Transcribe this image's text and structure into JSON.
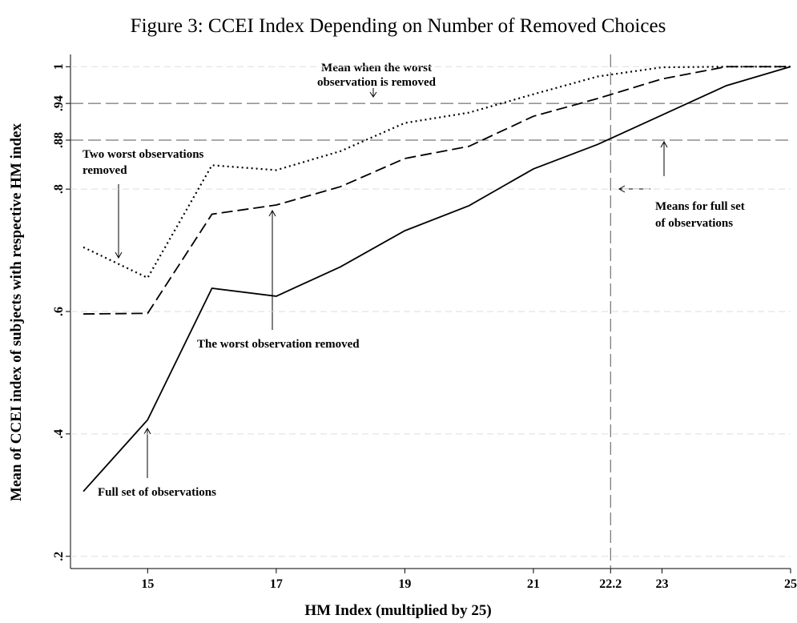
{
  "chart_data": {
    "type": "line",
    "title": "Figure 3: CCEI Index Depending on Number of Removed Choices",
    "x_label": "HM Index (multiplied by 25)",
    "y_label": "Mean of CCEI index of subjects with respective HM index",
    "x": [
      14,
      15,
      16,
      17,
      18,
      19,
      20,
      21,
      22,
      23,
      24,
      25
    ],
    "series": [
      {
        "style": "solid",
        "color": "#000000",
        "values": [
          0.306,
          0.423,
          0.638,
          0.625,
          0.673,
          0.732,
          0.773,
          0.833,
          0.873,
          0.921,
          0.969,
          1.0
        ]
      },
      {
        "style": "dashed",
        "color": "#000000",
        "values": [
          0.596,
          0.597,
          0.759,
          0.774,
          0.804,
          0.85,
          0.87,
          0.919,
          0.948,
          0.98,
          1.0,
          1.0
        ]
      },
      {
        "style": "dotted",
        "color": "#000000",
        "values": [
          0.705,
          0.655,
          0.839,
          0.831,
          0.862,
          0.908,
          0.925,
          0.955,
          0.984,
          0.999,
          1.0,
          1.0
        ]
      }
    ],
    "xlim": [
      13.8,
      25
    ],
    "ylim": [
      0.18,
      1.02
    ],
    "xticks": [
      15,
      17,
      19,
      21,
      22.2,
      23,
      25
    ],
    "yticks": [
      {
        "value": 0.2,
        "label": ".2"
      },
      {
        "value": 0.4,
        "label": ".4"
      },
      {
        "value": 0.6,
        "label": ".6"
      },
      {
        "value": 0.8,
        "label": ".8"
      },
      {
        "value": 0.88,
        "label": ".88"
      },
      {
        "value": 0.94,
        "label": ".94"
      },
      1
    ],
    "grid": true,
    "reference_lines": {
      "y": [
        0.88,
        0.94
      ],
      "x": [
        22.2
      ]
    },
    "annotations": [
      {
        "lines": [
          "Mean when the worst",
          "observation is removed"
        ]
      },
      {
        "lines": [
          "Two worst observations",
          "removed"
        ]
      },
      {
        "lines": [
          "The worst observation removed"
        ]
      },
      {
        "lines": [
          "Full set of observations"
        ]
      },
      {
        "lines": [
          "Means for full set",
          "of observations"
        ]
      }
    ]
  }
}
